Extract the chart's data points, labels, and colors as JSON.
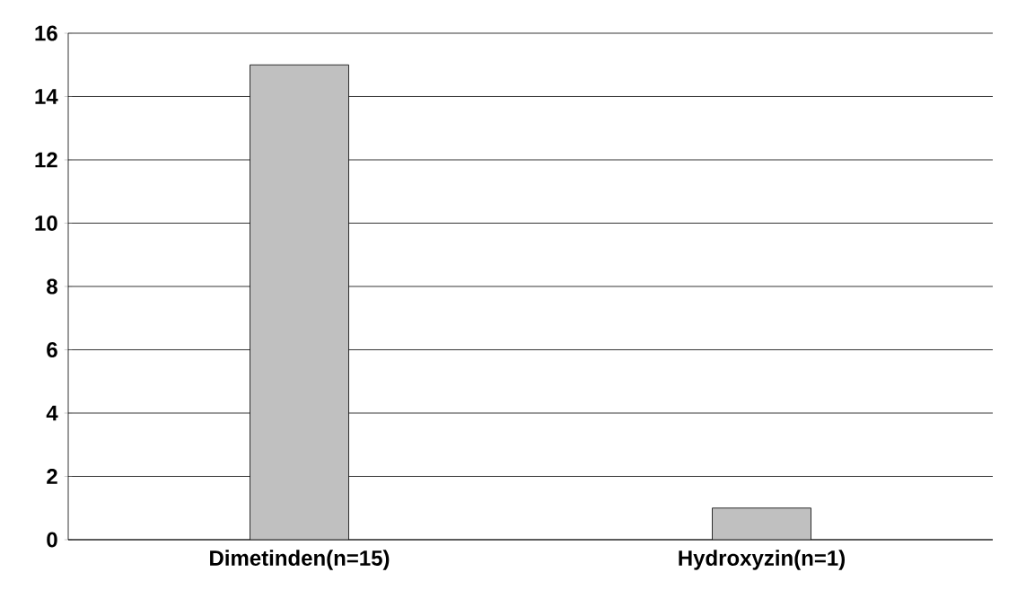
{
  "chart_data": {
    "type": "bar",
    "categories": [
      "Dimetinden(n=15)",
      "Hydroxyzin(n=1)"
    ],
    "values": [
      15,
      1
    ],
    "color": "#c0c0c0",
    "ylim": [
      0,
      16
    ],
    "yticks": [
      0,
      2,
      4,
      6,
      8,
      10,
      12,
      14,
      16
    ],
    "grid": "y"
  }
}
